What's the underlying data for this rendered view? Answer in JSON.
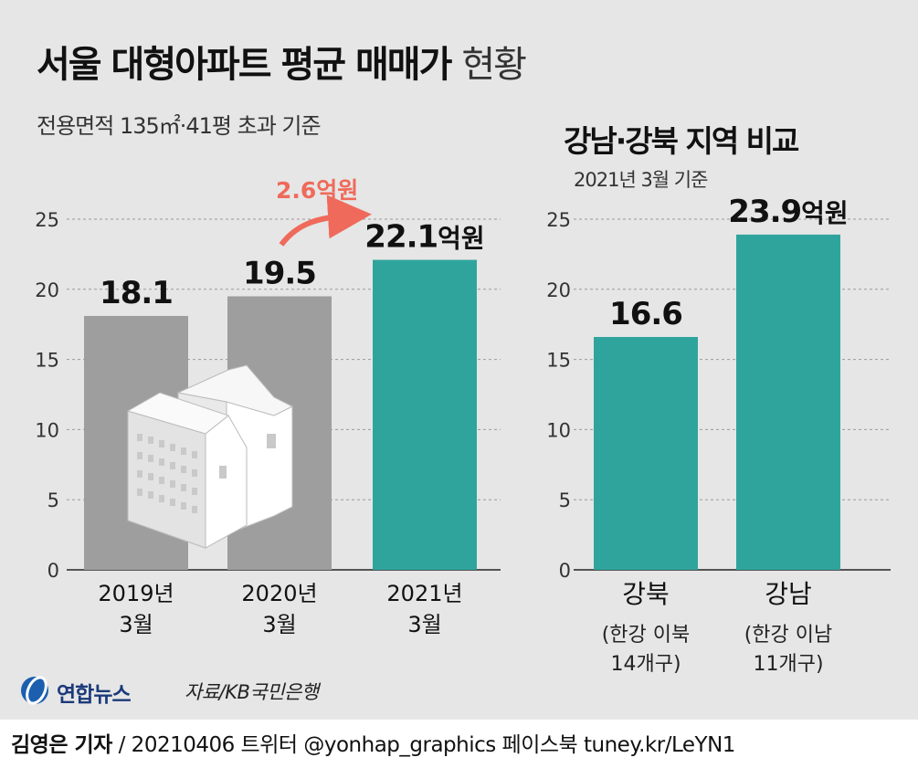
{
  "header": {
    "title_bold": "서울 대형아파트 평균 매매가",
    "title_light": "현황",
    "subtitle": "전용면적 135㎡·41평 초과 기준"
  },
  "right_header": {
    "title": "강남·강북 지역 비교",
    "subtitle": "2021년 3월 기준"
  },
  "chart_data": [
    {
      "type": "bar",
      "categories": [
        "2019년\n3월",
        "2020년\n3월",
        "2021년\n3월"
      ],
      "values": [
        18.1,
        19.5,
        22.1
      ],
      "data_labels": [
        "18.1",
        "19.5",
        "22.1억원"
      ],
      "ylim": [
        0,
        25
      ],
      "yticks": [
        0,
        5,
        10,
        15,
        20,
        25
      ],
      "bar_colors": [
        "#9e9e9e",
        "#9e9e9e",
        "#2fa49c"
      ],
      "annotation": "2.6억원",
      "grid": true
    },
    {
      "type": "bar",
      "categories": [
        "강북",
        "강남"
      ],
      "category_notes": [
        "(한강 이북\n14개구)",
        "(한강 이남\n11개구)"
      ],
      "values": [
        16.6,
        23.9
      ],
      "data_labels": [
        "16.6",
        "23.9억원"
      ],
      "ylim": [
        0,
        25
      ],
      "yticks": [
        0,
        5,
        10,
        15,
        20,
        25
      ],
      "bar_colors": [
        "#2fa49c",
        "#2fa49c"
      ],
      "grid": true
    }
  ],
  "colors": {
    "teal": "#2fa49c",
    "gray": "#9e9e9e",
    "arrow": "#ef6a5a",
    "background": "#e6e6e6"
  },
  "source": "자료/KB국민은행",
  "logo": "연합뉴스",
  "footer": {
    "reporter": "김영은 기자",
    "rest": " / 20210406  트위터 @yonhap_graphics  페이스북 tuney.kr/LeYN1"
  }
}
